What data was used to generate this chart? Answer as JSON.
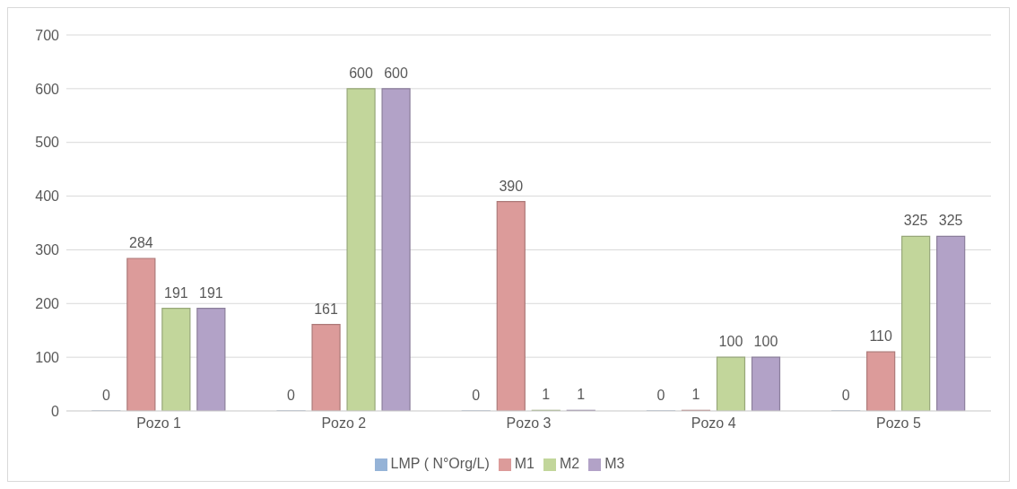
{
  "chart_data": {
    "type": "bar",
    "categories": [
      "Pozo 1",
      "Pozo 2",
      "Pozo 3",
      "Pozo 4",
      "Pozo 5"
    ],
    "series": [
      {
        "name": "LMP ( N°Org/L)",
        "color": "#95b3d7",
        "values": [
          0,
          0,
          0,
          0,
          0
        ]
      },
      {
        "name": "M1",
        "color": "#dc9b9a",
        "values": [
          284,
          161,
          390,
          1,
          110
        ]
      },
      {
        "name": "M2",
        "color": "#c2d69b",
        "values": [
          191,
          600,
          1,
          100,
          325
        ]
      },
      {
        "name": "M3",
        "color": "#b2a2c7",
        "values": [
          191,
          600,
          1,
          100,
          325
        ]
      }
    ],
    "ylim": [
      0,
      700
    ],
    "yticks": [
      0,
      100,
      200,
      300,
      400,
      500,
      600,
      700
    ],
    "grid": "y",
    "legend": "bottom",
    "data_labels": true
  }
}
